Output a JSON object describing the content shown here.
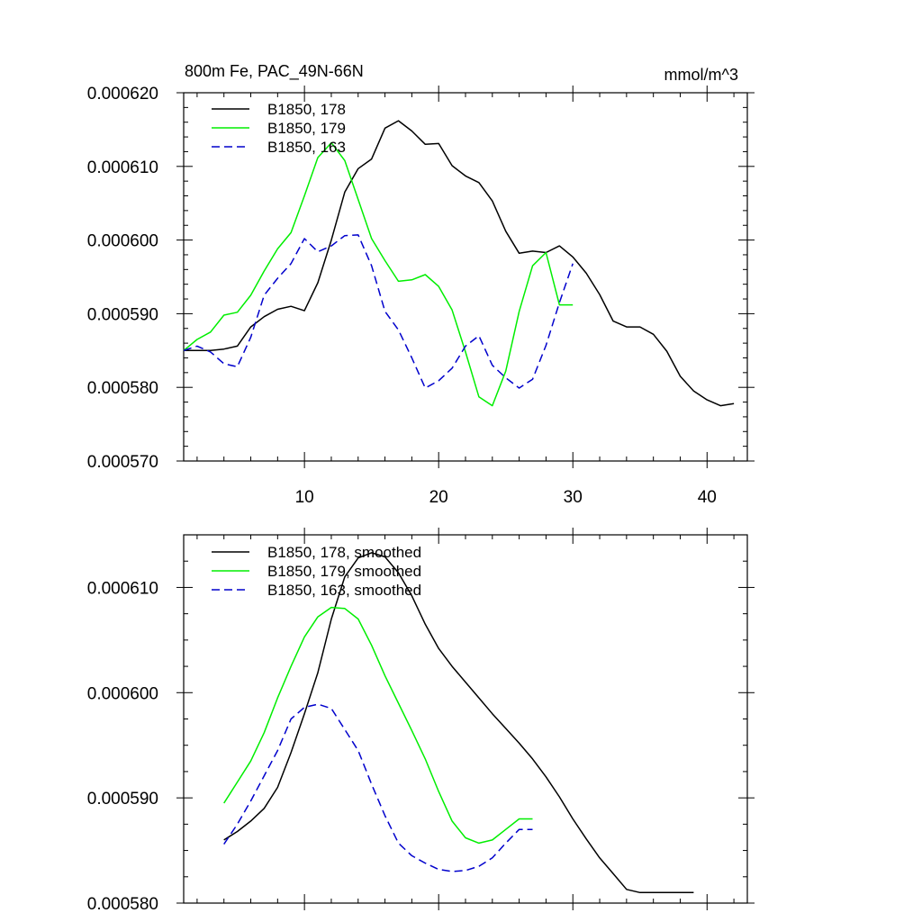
{
  "chart_data": [
    {
      "type": "line",
      "title_left": "800m Fe, PAC_49N-66N",
      "title_right": "mmol/m^3",
      "xlabel": "",
      "ylabel": "",
      "xlim": [
        1,
        43
      ],
      "ylim": [
        0.00057,
        0.00062
      ],
      "xticks": [
        10,
        20,
        30,
        40
      ],
      "yticks": [
        "0.000570",
        "0.000580",
        "0.000590",
        "0.000600",
        "0.000610",
        "0.000620"
      ],
      "legend_position": "top-left",
      "series": [
        {
          "name": "B1850, 178",
          "color": "#000000",
          "dash": "solid",
          "x": [
            1,
            2,
            3,
            4,
            5,
            6,
            7,
            8,
            9,
            10,
            11,
            12,
            13,
            14,
            15,
            16,
            17,
            18,
            19,
            20,
            21,
            22,
            23,
            24,
            25,
            26,
            27,
            28,
            29,
            30,
            31,
            32,
            33,
            34,
            35,
            36,
            37,
            38,
            39,
            40,
            41,
            42
          ],
          "y": [
            0.000585,
            0.000585,
            0.000585,
            0.0005852,
            0.0005856,
            0.0005882,
            0.0005896,
            0.0005906,
            0.000591,
            0.0005904,
            0.0005942,
            0.0006,
            0.0006065,
            0.0006097,
            0.000611,
            0.0006152,
            0.0006162,
            0.0006148,
            0.000613,
            0.0006131,
            0.0006101,
            0.0006087,
            0.0006078,
            0.0006053,
            0.0006012,
            0.0005982,
            0.0005985,
            0.0005983,
            0.0005992,
            0.0005977,
            0.0005955,
            0.0005926,
            0.000589,
            0.0005882,
            0.0005882,
            0.0005872,
            0.0005849,
            0.0005815,
            0.0005795,
            0.0005783,
            0.0005775,
            0.0005778
          ]
        },
        {
          "name": "B1850, 179",
          "color": "#00ee00",
          "dash": "solid",
          "x": [
            1,
            2,
            3,
            4,
            5,
            6,
            7,
            8,
            9,
            10,
            11,
            12,
            13,
            14,
            15,
            16,
            17,
            18,
            19,
            20,
            21,
            22,
            23,
            24,
            25,
            26,
            27,
            28,
            29,
            30
          ],
          "y": [
            0.000585,
            0.0005865,
            0.0005875,
            0.0005898,
            0.0005902,
            0.0005925,
            0.0005958,
            0.0005988,
            0.000601,
            0.000606,
            0.0006112,
            0.0006132,
            0.0006108,
            0.0006055,
            0.0006002,
            0.0005972,
            0.0005944,
            0.0005946,
            0.0005953,
            0.0005937,
            0.0005905,
            0.0005848,
            0.0005787,
            0.0005775,
            0.0005822,
            0.0005903,
            0.0005965,
            0.0005983,
            0.0005912,
            0.0005912
          ]
        },
        {
          "name": "B1850, 163",
          "color": "#0000cc",
          "dash": "dashed",
          "x": [
            1,
            2,
            3,
            4,
            5,
            6,
            7,
            8,
            9,
            10,
            11,
            12,
            13,
            14,
            15,
            16,
            17,
            18,
            19,
            20,
            21,
            22,
            23,
            24,
            25,
            26,
            27,
            28,
            29,
            30
          ],
          "y": [
            0.000585,
            0.0005856,
            0.0005848,
            0.0005832,
            0.0005828,
            0.0005868,
            0.0005925,
            0.0005948,
            0.0005968,
            0.0006002,
            0.0005984,
            0.0005992,
            0.0006006,
            0.0006007,
            0.0005965,
            0.0005903,
            0.0005878,
            0.000584,
            0.0005799,
            0.0005809,
            0.0005826,
            0.0005856,
            0.000587,
            0.000583,
            0.0005813,
            0.0005799,
            0.0005811,
            0.0005857,
            0.0005915,
            0.0005968
          ]
        }
      ]
    },
    {
      "type": "line",
      "xlabel": "",
      "ylabel": "",
      "xlim": [
        1,
        43
      ],
      "ylim": [
        0.00058,
        0.000615
      ],
      "xticks": [
        10,
        20,
        30,
        40
      ],
      "yticks": [
        "0.000580",
        "0.000590",
        "0.000600",
        "0.000610"
      ],
      "legend_position": "top-left",
      "series": [
        {
          "name": "B1850, 178, smoothed",
          "color": "#000000",
          "dash": "solid",
          "x": [
            4,
            5,
            6,
            7,
            8,
            9,
            10,
            11,
            12,
            13,
            14,
            15,
            16,
            17,
            18,
            19,
            20,
            21,
            22,
            23,
            24,
            25,
            26,
            27,
            28,
            29,
            30,
            31,
            32,
            33,
            34,
            35,
            36,
            37,
            38,
            39
          ],
          "y": [
            0.000586,
            0.0005868,
            0.0005878,
            0.000589,
            0.000591,
            0.0005943,
            0.000598,
            0.0006019,
            0.000607,
            0.000611,
            0.0006128,
            0.0006133,
            0.0006129,
            0.0006114,
            0.0006092,
            0.0006065,
            0.0006042,
            0.0006025,
            0.000601,
            0.0005995,
            0.000598,
            0.0005966,
            0.0005952,
            0.0005937,
            0.000592,
            0.0005901,
            0.000588,
            0.0005861,
            0.0005843,
            0.0005828,
            0.0005813,
            0.000581,
            0.000581,
            0.000581,
            0.000581,
            0.000581
          ]
        },
        {
          "name": "B1850, 179, smoothed",
          "color": "#00ee00",
          "dash": "solid",
          "x": [
            4,
            5,
            6,
            7,
            8,
            9,
            10,
            11,
            12,
            13,
            14,
            15,
            16,
            17,
            18,
            19,
            20,
            21,
            22,
            23,
            24,
            25,
            26,
            27
          ],
          "y": [
            0.0005895,
            0.0005915,
            0.0005935,
            0.0005962,
            0.0005995,
            0.0006025,
            0.0006053,
            0.0006072,
            0.0006081,
            0.000608,
            0.000607,
            0.0006045,
            0.0006016,
            0.000599,
            0.0005964,
            0.0005937,
            0.0005906,
            0.0005878,
            0.0005862,
            0.0005857,
            0.000586,
            0.000587,
            0.000588,
            0.000588
          ]
        },
        {
          "name": "B1850, 163, smoothed",
          "color": "#0000cc",
          "dash": "dashed",
          "x": [
            4,
            5,
            6,
            7,
            8,
            9,
            10,
            11,
            12,
            13,
            14,
            15,
            16,
            17,
            18,
            19,
            20,
            21,
            22,
            23,
            24,
            25,
            26,
            27
          ],
          "y": [
            0.0005856,
            0.0005875,
            0.0005897,
            0.0005921,
            0.0005945,
            0.0005975,
            0.0005986,
            0.0005989,
            0.0005985,
            0.0005965,
            0.0005945,
            0.0005913,
            0.0005883,
            0.0005857,
            0.0005845,
            0.0005838,
            0.0005832,
            0.000583,
            0.0005831,
            0.0005835,
            0.0005843,
            0.0005857,
            0.000587,
            0.000587
          ]
        }
      ]
    }
  ]
}
